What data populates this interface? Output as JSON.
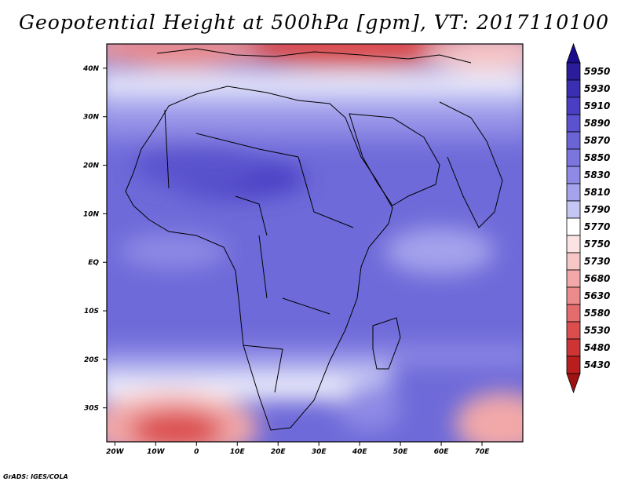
{
  "title": "Geopotential Height at 500hPa [gpm], VT: 2017110100",
  "credit": "GrADS: IGES/COLA",
  "map": {
    "lat_ticks": [
      "40N",
      "30N",
      "20N",
      "10N",
      "EQ",
      "10S",
      "20S",
      "30S"
    ],
    "lon_ticks": [
      "20W",
      "10W",
      "0",
      "10E",
      "20E",
      "30E",
      "40E",
      "50E",
      "60E",
      "70E"
    ],
    "lat_values": [
      40,
      30,
      20,
      10,
      0,
      -10,
      -20,
      -30
    ],
    "lon_values": [
      -20,
      -10,
      0,
      10,
      20,
      30,
      40,
      50,
      60,
      70
    ],
    "lon_range": [
      -22,
      80
    ],
    "lat_range": [
      -37,
      45
    ]
  },
  "colorbar": {
    "levels": [
      "5950",
      "5930",
      "5910",
      "5890",
      "5870",
      "5850",
      "5830",
      "5810",
      "5790",
      "5770",
      "5750",
      "5730",
      "5680",
      "5630",
      "5580",
      "5530",
      "5480",
      "5430"
    ],
    "colors": [
      "#2a1c9a",
      "#3a2fb3",
      "#4a3fc4",
      "#5a52ce",
      "#6a64d6",
      "#7b76de",
      "#8e8ae5",
      "#a4a3ec",
      "#c4c6f4",
      "#ffffff",
      "#fbe3e3",
      "#f7c6c6",
      "#f2a8a8",
      "#ec8b8b",
      "#e46c6c",
      "#dc4e4e",
      "#cf3434",
      "#b81e1e"
    ],
    "top_color": "#1a0d8c",
    "bottom_color": "#a01212"
  }
}
